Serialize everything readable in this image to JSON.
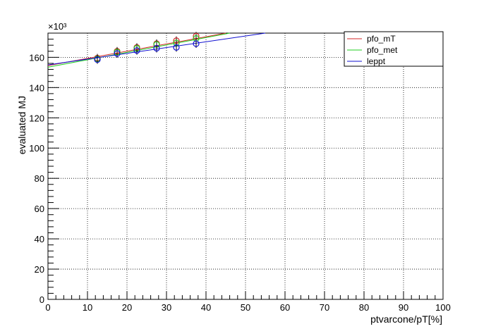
{
  "chart_data": {
    "type": "scatter",
    "title": "",
    "xlabel": "ptvarcone/pT[%]",
    "ylabel": "evaluated MJ",
    "y_exponent_label": "×10³",
    "xlim": [
      0,
      100
    ],
    "ylim": [
      0,
      176
    ],
    "y_scale_factor": 1000,
    "grid": true,
    "legend_position": "top-right",
    "x_ticks": [
      0,
      10,
      20,
      30,
      40,
      50,
      60,
      70,
      80,
      90,
      100
    ],
    "y_ticks": [
      0,
      20,
      40,
      60,
      80,
      100,
      120,
      140,
      160
    ],
    "series": [
      {
        "name": "pfo_mT",
        "color": "#d62728",
        "x": [
          12.5,
          17.5,
          22.5,
          27.5,
          32.5,
          37.5
        ],
        "y": [
          159.5,
          164.0,
          166.5,
          169.0,
          171.0,
          174.0
        ],
        "fit": [
          [
            0,
            154.5
          ],
          [
            45,
            176.0
          ]
        ]
      },
      {
        "name": "pfo_met",
        "color": "#22cc22",
        "x": [
          12.5,
          17.5,
          22.5,
          27.5,
          32.5,
          37.5
        ],
        "y": [
          159.0,
          163.5,
          166.0,
          168.5,
          169.5,
          172.5
        ],
        "fit": [
          [
            0,
            153.5
          ],
          [
            46,
            176.0
          ]
        ]
      },
      {
        "name": "leppt",
        "color": "#1010d0",
        "x": [
          12.5,
          17.5,
          22.5,
          27.5,
          32.5,
          37.5
        ],
        "y": [
          158.5,
          162.5,
          164.5,
          166.0,
          166.5,
          169.0
        ],
        "fit": [
          [
            0,
            155.0
          ],
          [
            55,
            176.0
          ]
        ]
      }
    ]
  }
}
